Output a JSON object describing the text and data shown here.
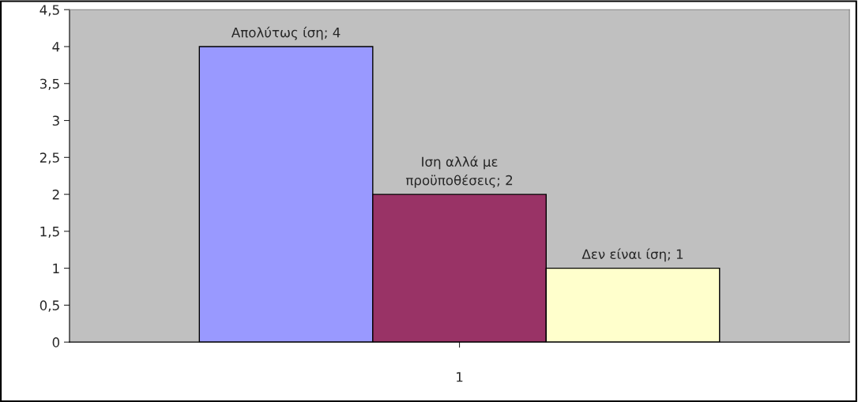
{
  "chart_data": {
    "type": "bar",
    "categories": [
      "1"
    ],
    "series": [
      {
        "color": "#9999ff",
        "values": [
          4
        ],
        "value_labels": [
          "Απολύτως ίση; 4"
        ]
      },
      {
        "color": "#993366",
        "values": [
          2
        ],
        "value_labels": [
          "Ιση αλλά με\nπροϋποθέσεις; 2"
        ]
      },
      {
        "color": "#ffffcc",
        "values": [
          1
        ],
        "value_labels": [
          "Δεν είναι ίση; 1"
        ]
      }
    ],
    "ylim": [
      0,
      4.5
    ],
    "yticks": [
      0,
      {
        "value": 0.5,
        "label": "0,5"
      },
      1,
      {
        "value": 1.5,
        "label": "1,5"
      },
      2,
      {
        "value": 2.5,
        "label": "2,5"
      },
      3,
      {
        "value": 3.5,
        "label": "3,5"
      },
      4,
      {
        "value": 4.5,
        "label": "4,5"
      }
    ],
    "grid": false,
    "legend": false
  }
}
